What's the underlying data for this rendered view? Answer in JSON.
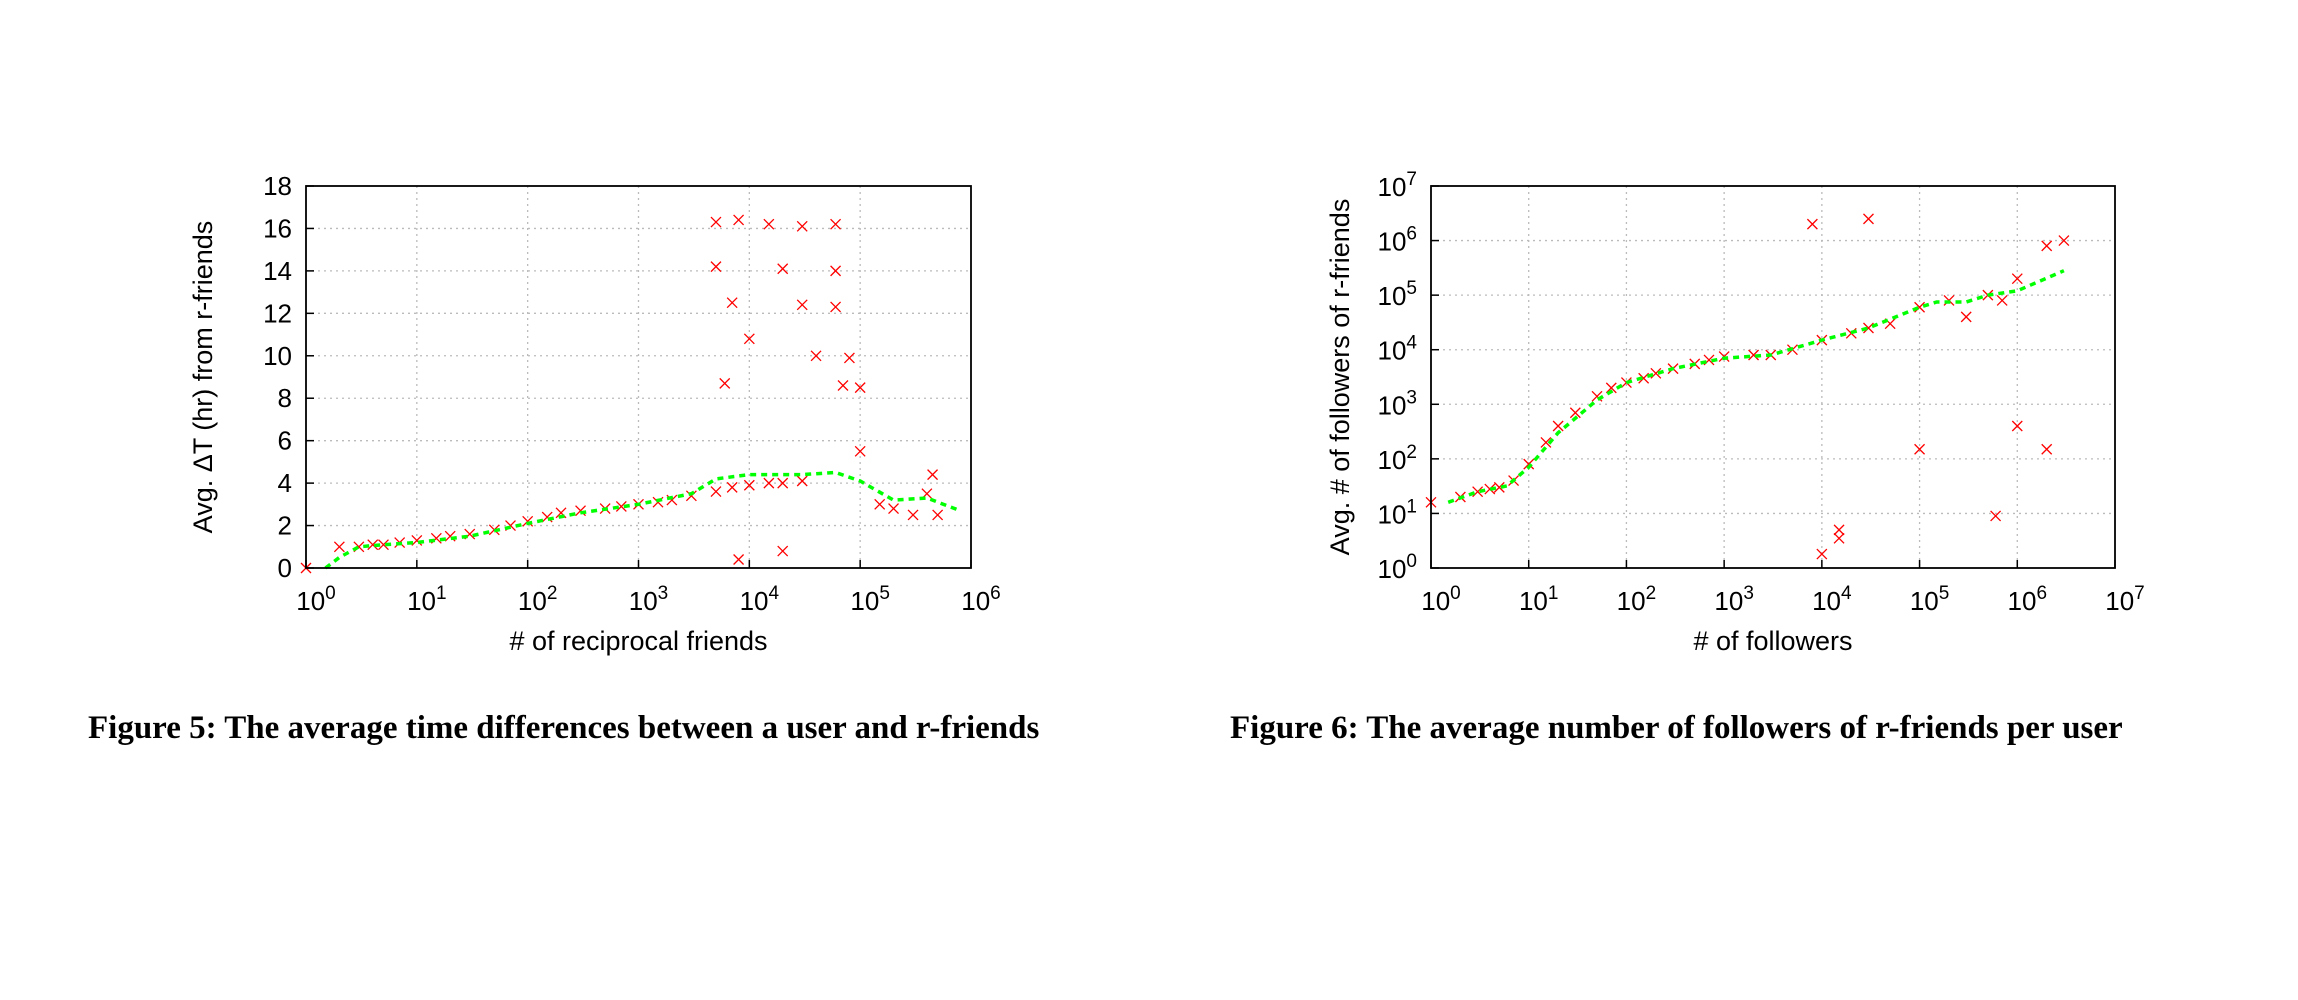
{
  "chart_data": [
    {
      "type": "scatter",
      "title": "",
      "xlabel": "# of reciprocal friends",
      "ylabel": "Avg. ΔT (hr) from r-friends",
      "xscale": "log",
      "xlim": [
        1,
        1000000
      ],
      "ylim": [
        0,
        18
      ],
      "grid": true,
      "x_ticks": [
        {
          "base": "10",
          "exp": "0"
        },
        {
          "base": "10",
          "exp": "1"
        },
        {
          "base": "10",
          "exp": "2"
        },
        {
          "base": "10",
          "exp": "3"
        },
        {
          "base": "10",
          "exp": "4"
        },
        {
          "base": "10",
          "exp": "5"
        },
        {
          "base": "10",
          "exp": "6"
        }
      ],
      "y_ticks": [
        "0",
        "2",
        "4",
        "6",
        "8",
        "10",
        "12",
        "14",
        "16",
        "18"
      ],
      "series": [
        {
          "marker": "x",
          "color": "#ff0000",
          "points": [
            [
              1,
              0
            ],
            [
              2,
              1.0
            ],
            [
              3,
              1.0
            ],
            [
              4,
              1.1
            ],
            [
              5,
              1.1
            ],
            [
              7,
              1.2
            ],
            [
              10,
              1.3
            ],
            [
              15,
              1.4
            ],
            [
              20,
              1.5
            ],
            [
              30,
              1.6
            ],
            [
              50,
              1.8
            ],
            [
              70,
              2.0
            ],
            [
              100,
              2.2
            ],
            [
              150,
              2.4
            ],
            [
              200,
              2.6
            ],
            [
              300,
              2.7
            ],
            [
              500,
              2.8
            ],
            [
              700,
              2.9
            ],
            [
              1000,
              3.0
            ],
            [
              1500,
              3.1
            ],
            [
              2000,
              3.2
            ],
            [
              3000,
              3.4
            ],
            [
              5000,
              3.6
            ],
            [
              7000,
              3.8
            ],
            [
              10000,
              3.9
            ],
            [
              15000,
              4.0
            ],
            [
              20000,
              4.0
            ],
            [
              30000,
              4.1
            ],
            [
              100000,
              5.5
            ],
            [
              150000,
              3.0
            ],
            [
              200000,
              2.8
            ],
            [
              300000,
              2.5
            ],
            [
              400000,
              3.5
            ],
            [
              450000,
              4.4
            ],
            [
              500000,
              2.5
            ],
            [
              5000,
              16.3
            ],
            [
              8000,
              16.4
            ],
            [
              15000,
              16.2
            ],
            [
              30000,
              16.1
            ],
            [
              60000,
              16.2
            ],
            [
              5000,
              14.2
            ],
            [
              20000,
              14.1
            ],
            [
              60000,
              14.0
            ],
            [
              7000,
              12.5
            ],
            [
              30000,
              12.4
            ],
            [
              60000,
              12.3
            ],
            [
              10000,
              10.8
            ],
            [
              40000,
              10.0
            ],
            [
              80000,
              9.9
            ],
            [
              6000,
              8.7
            ],
            [
              70000,
              8.6
            ],
            [
              100000,
              8.5
            ],
            [
              8000,
              0.4
            ],
            [
              20000,
              0.8
            ]
          ]
        },
        {
          "marker": "dashed-line",
          "color": "#00ff00",
          "points": [
            [
              1.5,
              0
            ],
            [
              2,
              0.5
            ],
            [
              3,
              1.0
            ],
            [
              5,
              1.1
            ],
            [
              10,
              1.2
            ],
            [
              30,
              1.5
            ],
            [
              100,
              2.1
            ],
            [
              300,
              2.6
            ],
            [
              1000,
              3.0
            ],
            [
              3000,
              3.5
            ],
            [
              5000,
              4.2
            ],
            [
              10000,
              4.4
            ],
            [
              30000,
              4.4
            ],
            [
              60000,
              4.5
            ],
            [
              100000,
              4.1
            ],
            [
              200000,
              3.2
            ],
            [
              400000,
              3.3
            ],
            [
              800000,
              2.7
            ]
          ]
        }
      ]
    },
    {
      "type": "scatter",
      "title": "",
      "xlabel": "# of followers",
      "ylabel": "Avg. # of followers of r-friends",
      "xscale": "log",
      "yscale": "log",
      "xlim": [
        1,
        10000000
      ],
      "ylim": [
        1,
        10000000
      ],
      "grid": true,
      "x_ticks": [
        {
          "base": "10",
          "exp": "0"
        },
        {
          "base": "10",
          "exp": "1"
        },
        {
          "base": "10",
          "exp": "2"
        },
        {
          "base": "10",
          "exp": "3"
        },
        {
          "base": "10",
          "exp": "4"
        },
        {
          "base": "10",
          "exp": "5"
        },
        {
          "base": "10",
          "exp": "6"
        },
        {
          "base": "10",
          "exp": "7"
        }
      ],
      "y_ticks": [
        {
          "base": "10",
          "exp": "0"
        },
        {
          "base": "10",
          "exp": "1"
        },
        {
          "base": "10",
          "exp": "2"
        },
        {
          "base": "10",
          "exp": "3"
        },
        {
          "base": "10",
          "exp": "4"
        },
        {
          "base": "10",
          "exp": "5"
        },
        {
          "base": "10",
          "exp": "6"
        },
        {
          "base": "10",
          "exp": "7"
        }
      ],
      "series": [
        {
          "marker": "x",
          "color": "#ff0000",
          "points": [
            [
              1,
              16
            ],
            [
              2,
              20
            ],
            [
              3,
              25
            ],
            [
              4,
              28
            ],
            [
              5,
              30
            ],
            [
              7,
              40
            ],
            [
              10,
              80
            ],
            [
              15,
              200
            ],
            [
              20,
              400
            ],
            [
              30,
              700
            ],
            [
              50,
              1400
            ],
            [
              70,
              2000
            ],
            [
              100,
              2500
            ],
            [
              150,
              3000
            ],
            [
              200,
              3700
            ],
            [
              300,
              4500
            ],
            [
              500,
              5500
            ],
            [
              700,
              6500
            ],
            [
              1000,
              7500
            ],
            [
              2000,
              8000
            ],
            [
              3000,
              8000
            ],
            [
              5000,
              10000
            ],
            [
              10000,
              15000
            ],
            [
              20000,
              20000
            ],
            [
              30000,
              25000
            ],
            [
              50000,
              30000
            ],
            [
              100000,
              60000
            ],
            [
              200000,
              80000
            ],
            [
              300000,
              40000
            ],
            [
              500000,
              100000
            ],
            [
              700000,
              80000
            ],
            [
              1000000,
              200000
            ],
            [
              2000000,
              800000
            ],
            [
              3000000,
              1000000
            ],
            [
              10000,
              1.8
            ],
            [
              15000,
              3.5
            ],
            [
              15000,
              5
            ],
            [
              8000,
              2000000
            ],
            [
              30000,
              2500000
            ],
            [
              600000,
              9
            ],
            [
              2000000,
              150
            ],
            [
              1000000,
              400
            ],
            [
              100000,
              150
            ]
          ]
        },
        {
          "marker": "dashed-line",
          "color": "#00ff00",
          "points": [
            [
              1.5,
              16
            ],
            [
              3,
              25
            ],
            [
              6,
              32
            ],
            [
              10,
              70
            ],
            [
              20,
              300
            ],
            [
              50,
              1200
            ],
            [
              100,
              2500
            ],
            [
              300,
              4500
            ],
            [
              1000,
              7000
            ],
            [
              3000,
              8000
            ],
            [
              10000,
              15000
            ],
            [
              30000,
              25000
            ],
            [
              100000,
              60000
            ],
            [
              150000,
              75000
            ],
            [
              300000,
              75000
            ],
            [
              500000,
              100000
            ],
            [
              1000000,
              120000
            ],
            [
              3000000,
              280000
            ]
          ]
        }
      ]
    }
  ],
  "captions": {
    "fig5": "Figure 5:  The average time differences between a user and r-friends",
    "fig6": "Figure 6: The average number of followers of r-friends per user"
  }
}
